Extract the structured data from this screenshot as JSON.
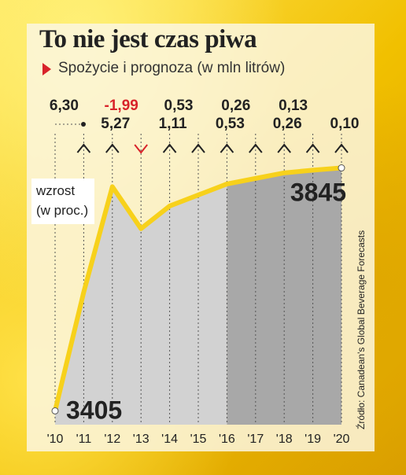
{
  "title": "To nie jest czas piwa",
  "subtitle": "Spożycie i prognoza (w mln litrów)",
  "source": "Źródło: Canadean's Global Beverage Forecasts",
  "legend_label_line1": "wzrost",
  "legend_label_line2": "(w proc.)",
  "colors": {
    "line": "#f7d11b",
    "area_light": "#d2d2d2",
    "area_dark": "#a8a8a8",
    "negative": "#d8232a"
  },
  "chart_data": {
    "type": "area",
    "x": [
      "'10",
      "'11",
      "'12",
      "'13",
      "'14",
      "'15",
      "'16",
      "'17",
      "'18",
      "'19",
      "'20"
    ],
    "values": [
      3405,
      3620,
      3811,
      3735,
      3776,
      3796,
      3816,
      3826,
      3836,
      3841,
      3845
    ],
    "value_labels": {
      "first": "3405",
      "last": "3845"
    },
    "growth": [
      "6,30",
      "5,27",
      "-1,99",
      "1,11",
      "0,53",
      "0,53",
      "0,26",
      "0,26",
      "0,13",
      "0,10"
    ],
    "growth_direction": [
      "up",
      "up",
      "down",
      "up",
      "up",
      "up",
      "up",
      "up",
      "up",
      "up"
    ],
    "forecast_from": "'16",
    "ylim": [
      3380,
      3860
    ]
  }
}
